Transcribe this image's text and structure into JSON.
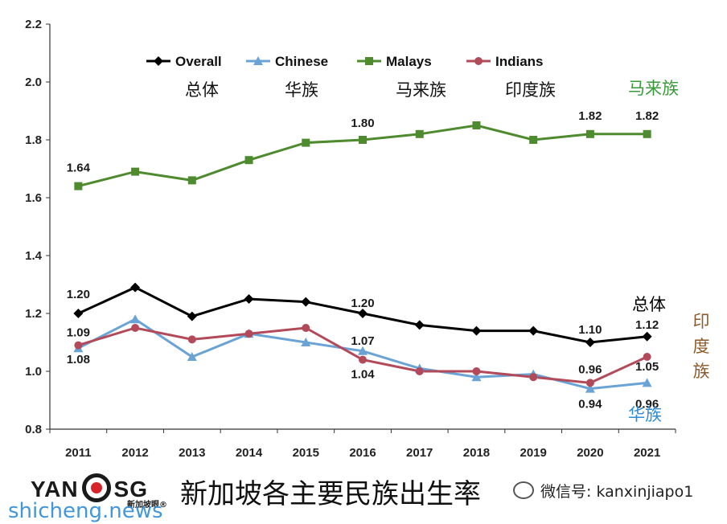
{
  "chart_data": {
    "type": "line",
    "categories": [
      "2011",
      "2012",
      "2013",
      "2014",
      "2015",
      "2016",
      "2017",
      "2018",
      "2019",
      "2020",
      "2021"
    ],
    "ylim": [
      0.8,
      2.2
    ],
    "yticks": [
      "0.8",
      "1.0",
      "1.2",
      "1.4",
      "1.6",
      "1.8",
      "2.0",
      "2.2"
    ],
    "grid": false,
    "legend_position": "top",
    "series": [
      {
        "key": "overall",
        "name": "Overall",
        "cn_name": "总体",
        "color": "#000000",
        "marker": "diamond",
        "values": [
          1.2,
          1.29,
          1.19,
          1.25,
          1.24,
          1.2,
          1.16,
          1.14,
          1.14,
          1.1,
          1.12
        ]
      },
      {
        "key": "chinese",
        "name": "Chinese",
        "cn_name": "华族",
        "color": "#6aa3d5",
        "marker": "triangle",
        "values": [
          1.08,
          1.18,
          1.05,
          1.13,
          1.1,
          1.07,
          1.01,
          0.98,
          0.99,
          0.94,
          0.96
        ]
      },
      {
        "key": "malays",
        "name": "Malays",
        "cn_name": "马来族",
        "color": "#4e8a2e",
        "marker": "square",
        "values": [
          1.64,
          1.69,
          1.66,
          1.73,
          1.79,
          1.8,
          1.82,
          1.85,
          1.8,
          1.82,
          1.82
        ]
      },
      {
        "key": "indians",
        "name": "Indians",
        "cn_name": "印度族",
        "color": "#b24a5a",
        "marker": "circle",
        "values": [
          1.09,
          1.15,
          1.11,
          1.13,
          1.15,
          1.04,
          1.0,
          1.0,
          0.98,
          0.96,
          1.05
        ]
      }
    ],
    "data_labels": [
      {
        "series": "malays",
        "index": 0,
        "text": "1.64"
      },
      {
        "series": "malays",
        "index": 5,
        "text": "1.80"
      },
      {
        "series": "malays",
        "index": 9,
        "text": "1.82"
      },
      {
        "series": "malays",
        "index": 10,
        "text": "1.82"
      },
      {
        "series": "overall",
        "index": 0,
        "text": "1.20"
      },
      {
        "series": "overall",
        "index": 5,
        "text": "1.20"
      },
      {
        "series": "overall",
        "index": 9,
        "text": "1.10"
      },
      {
        "series": "overall",
        "index": 10,
        "text": "1.12"
      },
      {
        "series": "indians",
        "index": 0,
        "text": "1.09"
      },
      {
        "series": "chinese",
        "index": 0,
        "text": "1.08"
      },
      {
        "series": "chinese",
        "index": 5,
        "text": "1.07"
      },
      {
        "series": "indians",
        "index": 5,
        "text": "1.04"
      },
      {
        "series": "indians",
        "index": 9,
        "text": "0.96"
      },
      {
        "series": "chinese",
        "index": 9,
        "text": "0.94"
      },
      {
        "series": "indians",
        "index": 10,
        "text": "1.05"
      },
      {
        "series": "chinese",
        "index": 10,
        "text": "0.96"
      }
    ],
    "side_labels": {
      "malays": "马来族",
      "overall": "总体",
      "indians": "印度族",
      "chinese": "华族"
    },
    "side_label_colors": {
      "malays": "#3a9a3a",
      "overall": "#000000",
      "indians": "#8b5a2b",
      "chinese": "#2e8bd6"
    }
  },
  "footer": {
    "logo_left": "YAN",
    "logo_right": "SG",
    "logo_sub": "新加坡眼®",
    "title": "新加坡各主要民族出生率",
    "wechat": "微信号: kanxinjiapo1",
    "watermark": "shicheng.news"
  }
}
